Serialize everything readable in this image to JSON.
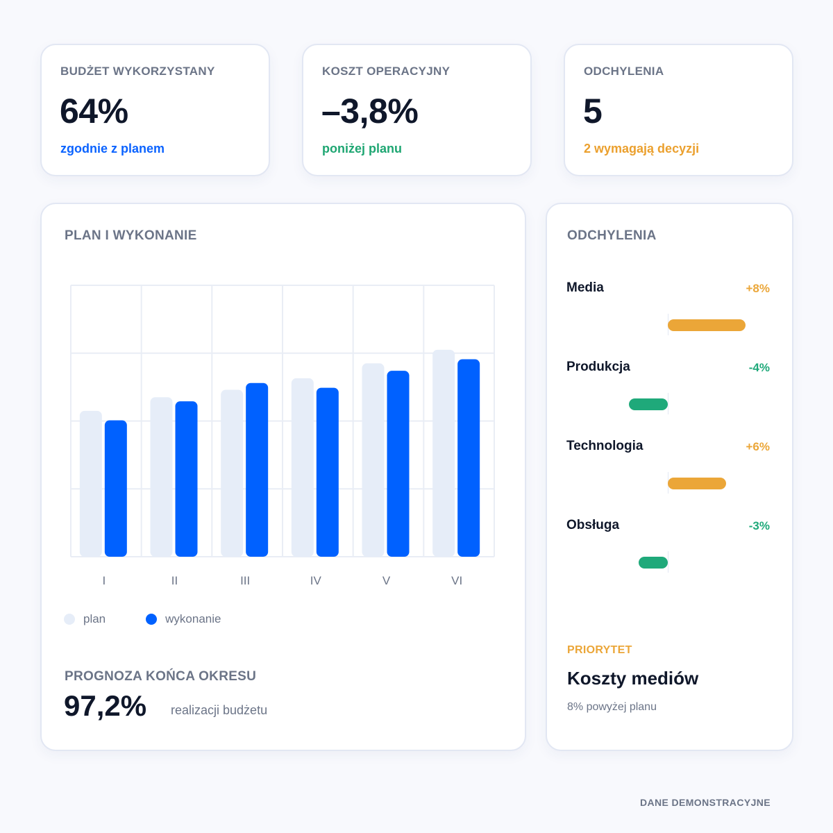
{
  "kpis": [
    {
      "label": "BUDŻET WYKORZYSTANY",
      "value": "64%",
      "note": "zgodnie z planem",
      "note_color": "#0b63ff"
    },
    {
      "label": "KOSZT OPERACYJNY",
      "value": "–3,8%",
      "note": "poniżej planu",
      "note_color": "#1ea672"
    },
    {
      "label": "ODCHYLENIA",
      "value": "5",
      "note": "2 wymagają decyzji",
      "note_color": "#eba02e"
    }
  ],
  "plan_chart": {
    "title": "PLAN I WYKONANIE",
    "legend": {
      "plan": "plan",
      "actual": "wykonanie"
    }
  },
  "chart_data": {
    "type": "bar",
    "categories": [
      "I",
      "II",
      "III",
      "IV",
      "V",
      "VI"
    ],
    "series": [
      {
        "name": "plan",
        "values": [
          2.15,
          2.35,
          2.46,
          2.63,
          2.85,
          3.05
        ],
        "color": "#e6edf8"
      },
      {
        "name": "wykonanie",
        "values": [
          2.01,
          2.29,
          2.56,
          2.49,
          2.74,
          2.91
        ],
        "color": "#0061ff"
      }
    ],
    "ylim": [
      0,
      4
    ],
    "grid": true,
    "legend_position": "bottom-left"
  },
  "forecast": {
    "label": "PROGNOZA KOŃCA OKRESU",
    "value": "97,2%",
    "caption": "realizacji budżetu"
  },
  "deviations": {
    "title": "ODCHYLENIA",
    "items": [
      {
        "name": "Media",
        "value_label": "+8%",
        "value": 8,
        "color": "#eba638"
      },
      {
        "name": "Produkcja",
        "value_label": "-4%",
        "value": -4,
        "color": "#1fa97a"
      },
      {
        "name": "Technologia",
        "value_label": "+6%",
        "value": 6,
        "color": "#eba638"
      },
      {
        "name": "Obsługa",
        "value_label": "-3%",
        "value": -3,
        "color": "#1fa97a"
      }
    ]
  },
  "priority": {
    "label": "PRIORYTET",
    "title": "Koszty mediów",
    "note": "8% powyżej planu",
    "color": "#eba638"
  },
  "footer": "DANE DEMONSTRACYJNE"
}
